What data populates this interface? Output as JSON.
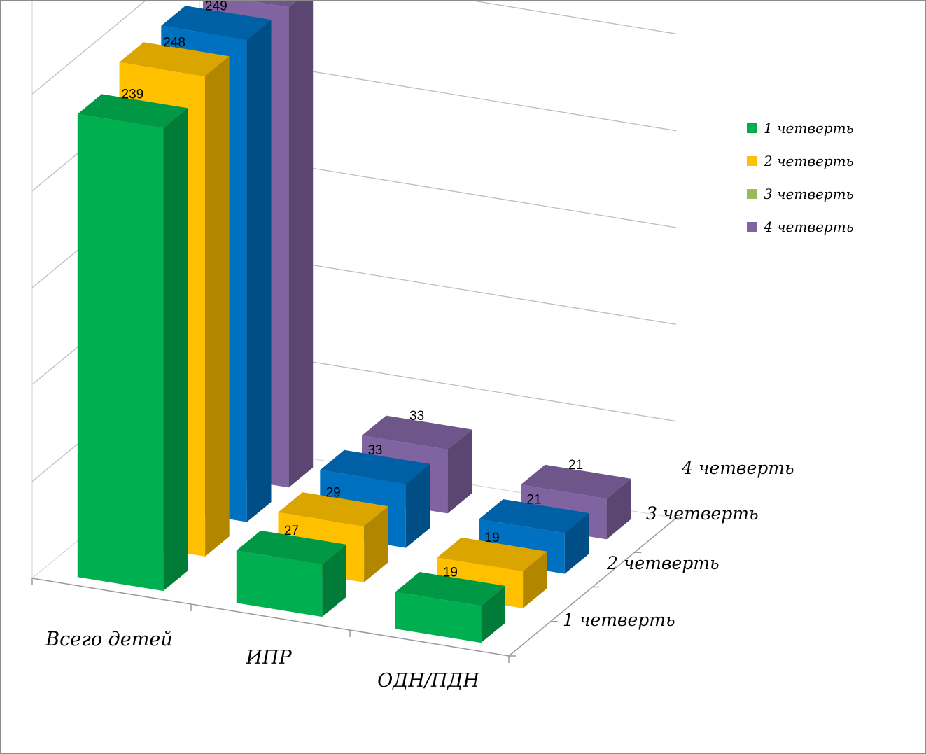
{
  "chart_data": {
    "type": "bar",
    "subtype": "3d-column",
    "title": "",
    "categories": [
      "Всего детей",
      "ИПР",
      "ОДН/ПДН"
    ],
    "series": [
      {
        "name": "1 четверть",
        "values": [
          239,
          27,
          19
        ],
        "color": "#00b050",
        "label_color": "#00b050"
      },
      {
        "name": "2 четверть",
        "values": [
          248,
          29,
          19
        ],
        "color": "#ffc000",
        "label_color": "#ffc000"
      },
      {
        "name": "3 четверть",
        "values": [
          249,
          33,
          21
        ],
        "color": "#0070c0",
        "label_color": "#9bbb59"
      },
      {
        "name": "4 четверть",
        "values": [
          248,
          33,
          21
        ],
        "color": "#8064a2",
        "label_color": "#8064a2"
      }
    ],
    "depth_labels": [
      "1 четверть",
      "2 четверть",
      "3 четверть",
      "4 четверть"
    ],
    "ylim": [
      0,
      300
    ],
    "grid": true,
    "legend": "right"
  }
}
